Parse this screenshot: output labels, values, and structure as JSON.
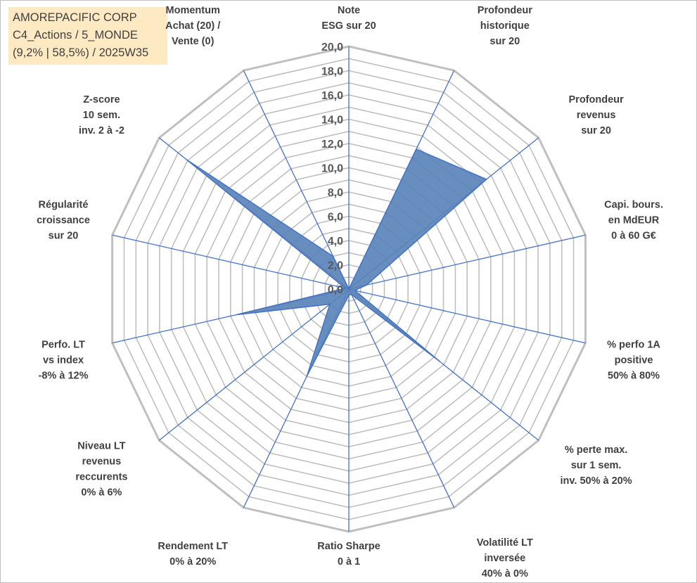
{
  "title_box": {
    "line1": "AMOREPACIFIC CORP",
    "line2": "C4_Actions / 5_MONDE",
    "line3": "(9,2% | 58,5%) / 2025W35"
  },
  "chart_data": {
    "type": "radar",
    "title": "AMOREPACIFIC CORP",
    "r_range": [
      0,
      20
    ],
    "r_ticks": [
      "0,0",
      "2,0",
      "4,0",
      "6,0",
      "8,0",
      "10,0",
      "12,0",
      "14,0",
      "16,0",
      "18,0",
      "20,0"
    ],
    "grid": true,
    "axes": [
      [
        "Note",
        "ESG sur 20"
      ],
      [
        "Profondeur",
        "historique",
        "sur 20"
      ],
      [
        "Profondeur",
        "revenus",
        "sur 20"
      ],
      [
        "Capi. bours.",
        "en MdEUR",
        "0 à 60 G€"
      ],
      [
        "% perfo 1A",
        "positive",
        "50% à 80%"
      ],
      [
        "% perte max.",
        "sur 1 sem.",
        "inv. 50% à 20%"
      ],
      [
        "Volatilité LT",
        "inversée",
        "40% à 0%"
      ],
      [
        "Ratio Sharpe",
        "0 à 1"
      ],
      [
        "Rendement LT",
        "0% à 20%"
      ],
      [
        "Niveau LT",
        "revenus",
        "reccurents",
        "0% à 6%"
      ],
      [
        "Perfo. LT",
        "vs index",
        "-8% à 12%"
      ],
      [
        "Régularité",
        "croissance",
        "sur 20"
      ],
      [
        "Z-score",
        "10 sem.",
        "inv. 2 à -2"
      ],
      [
        "Momentum",
        "Achat (20) /",
        "Vente (0)"
      ]
    ],
    "series": [
      {
        "values": [
          0,
          12.8,
          14.5,
          1.5,
          0.5,
          9.6,
          0.5,
          0.5,
          8.0,
          2.0,
          9.5,
          0.3,
          17.1,
          3.0
        ]
      }
    ],
    "colors": {
      "fill": "#5a84b8",
      "stroke": "#4472c4",
      "grid": "#bfbfbf",
      "spoke": "#4472c4"
    }
  }
}
